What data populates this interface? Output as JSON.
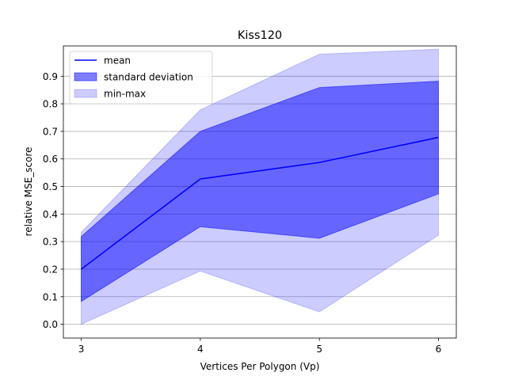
{
  "chart_data": {
    "type": "line",
    "title": "Kiss120",
    "xlabel": "Vertices Per Polygon (Vp)",
    "ylabel": "relative MSE_score",
    "x": [
      3,
      4,
      5,
      6
    ],
    "x_ticks": [
      "3",
      "4",
      "5",
      "6"
    ],
    "y_ticks": [
      "0.0",
      "0.1",
      "0.2",
      "0.3",
      "0.4",
      "0.5",
      "0.6",
      "0.7",
      "0.8",
      "0.9"
    ],
    "xlim": [
      2.85,
      6.15
    ],
    "ylim": [
      -0.05,
      1.01
    ],
    "grid": "horizontal",
    "legend_position": "upper left",
    "series": [
      {
        "name": "mean",
        "kind": "line",
        "color": "#0000ff",
        "values": [
          0.2,
          0.527,
          0.587,
          0.678
        ]
      },
      {
        "name": "standard deviation",
        "kind": "band",
        "color": "#0000ff",
        "fill_opacity": 0.5,
        "lower": [
          0.083,
          0.354,
          0.312,
          0.473
        ],
        "upper": [
          0.318,
          0.7,
          0.859,
          0.882
        ]
      },
      {
        "name": "min-max",
        "kind": "band",
        "color": "#0000ff",
        "fill_opacity": 0.2,
        "lower": [
          0.0,
          0.193,
          0.045,
          0.323
        ],
        "upper": [
          0.334,
          0.778,
          0.98,
          0.998
        ]
      }
    ]
  }
}
